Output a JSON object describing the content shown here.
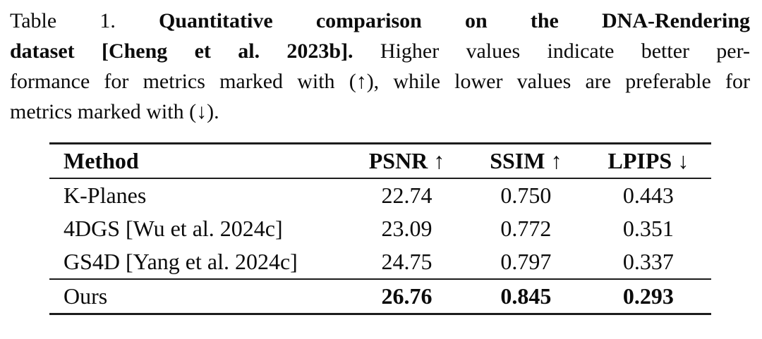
{
  "caption": {
    "line1": {
      "prefix": "Table 1. ",
      "bold": "Quantitative comparison on the DNA-Rendering"
    },
    "line2": {
      "bold": "dataset [Cheng et al. 2023b]. ",
      "rest": "Higher values indicate better per-"
    },
    "line3": "formance for metrics marked with (↑), while lower values are preferable for",
    "line4": "metrics marked with (↓)."
  },
  "table": {
    "headers": [
      "Method",
      "PSNR ↑",
      "SSIM ↑",
      "LPIPS ↓"
    ],
    "rows": [
      {
        "method": "K-Planes",
        "psnr": "22.74",
        "ssim": "0.750",
        "lpips": "0.443",
        "bold_values": false
      },
      {
        "method": "4DGS [Wu et al. 2024c]",
        "psnr": "23.09",
        "ssim": "0.772",
        "lpips": "0.351",
        "bold_values": false
      },
      {
        "method": "GS4D [Yang et al. 2024c]",
        "psnr": "24.75",
        "ssim": "0.797",
        "lpips": "0.337",
        "bold_values": false
      },
      {
        "method": "Ours",
        "psnr": "26.76",
        "ssim": "0.845",
        "lpips": "0.293",
        "bold_values": true
      }
    ]
  },
  "colors": {
    "text": "#0b0b0b",
    "background": "#ffffff",
    "rule": "#1c1c1c"
  }
}
